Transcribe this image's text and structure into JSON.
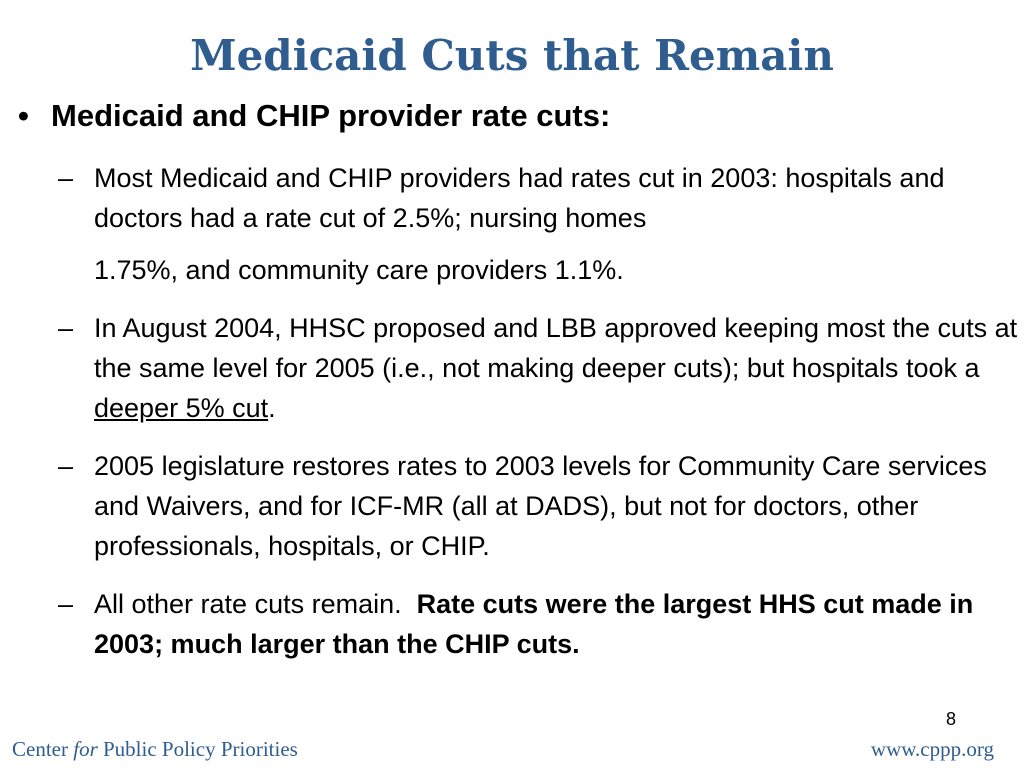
{
  "slide": {
    "title": "Medicaid Cuts that Remain",
    "main_bullet": {
      "marker": "•",
      "text": "Medicaid and CHIP provider rate cuts:"
    },
    "sub_bullets": [
      {
        "marker": "–",
        "part1": "Most Medicaid and CHIP providers had rates cut in 2003: hospitals and doctors had a rate cut of 2.5%; nursing homes ",
        "part2": "1.75%, and community care providers 1.1%."
      },
      {
        "marker": "–",
        "before": "In August 2004, HHSC proposed and LBB approved keeping most the cuts at the same level for 2005 (i.e., not making deeper cuts); but hospitals took a ",
        "underlined": "deeper 5% cut",
        "after": "."
      },
      {
        "marker": "–",
        "text": "2005 legislature restores rates to 2003 levels for Community Care services and Waivers, and for ICF-MR (all at DADS), but not for doctors, other professionals, hospitals, or CHIP."
      },
      {
        "marker": "–",
        "plain": "All other rate cuts remain.  ",
        "bold": "Rate cuts were the largest HHS cut made in 2003; much larger than the CHIP cuts."
      }
    ],
    "page_number": "8"
  },
  "footer": {
    "left_pre": "Center ",
    "left_italic": "for",
    "left_post": " Public Policy Priorities",
    "right": "www.cppp.org"
  },
  "colors": {
    "title": "#2f5d8f",
    "footer": "#2f5d8f",
    "body_text": "#000000",
    "background": "#ffffff"
  }
}
